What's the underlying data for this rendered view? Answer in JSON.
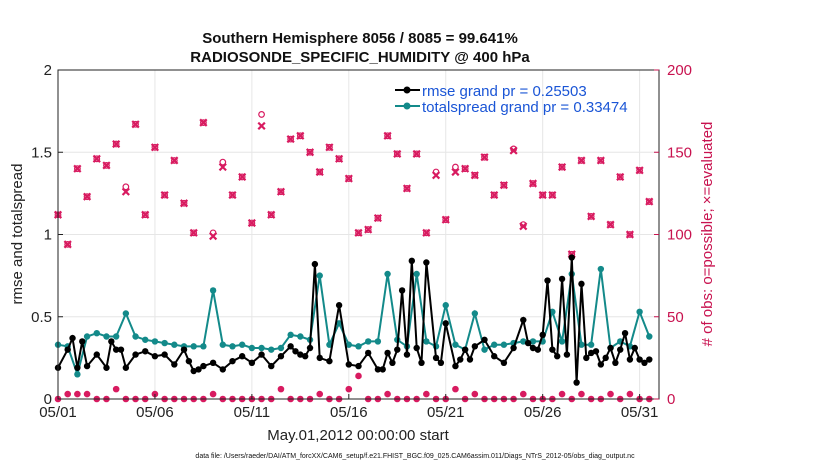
{
  "chart_data": {
    "type": "line",
    "title_line1": "Southern Hemisphere 8056 / 8085 = 99.641%",
    "title_line2": "RADIOSONDE_SPECIFIC_HUMIDITY @ 400 hPa",
    "xlabel": "May.01,2012 00:00:00 start",
    "ylabel": "rmse and totalspread",
    "ylabel_right": "# of obs: o=possible; ×=evaluated",
    "footer": "data file: /Users/raeder/DAI/ATM_forcXX/CAM6_setup/f.e21.FHIST_BGC.f09_025.CAM6assim.011/Diags_NTrS_2012-05/obs_diag_output.nc",
    "xlim": [
      1,
      32
    ],
    "ylim": [
      0,
      2
    ],
    "ylim_right": [
      0,
      200
    ],
    "x_tick_values": [
      1,
      6,
      11,
      16,
      21,
      26,
      31
    ],
    "x_tick_labels": [
      "05/01",
      "05/06",
      "05/11",
      "05/16",
      "05/21",
      "05/26",
      "05/31"
    ],
    "y_ticks": [
      "0",
      "0.5",
      "1",
      "1.5",
      "2"
    ],
    "y_ticks_right": [
      "0",
      "50",
      "100",
      "150",
      "200"
    ],
    "grid": true,
    "colors": {
      "rmse": "#000000",
      "spread": "#138a8a",
      "obs": "#d81b60",
      "legend_text": "#1a55d6"
    },
    "series": [
      {
        "name": "rmse grand pr = 0.25503",
        "x": [
          1.0,
          1.5,
          1.75,
          2.0,
          2.25,
          2.5,
          3.0,
          3.5,
          3.75,
          4.0,
          4.25,
          4.5,
          5.0,
          5.5,
          6.0,
          6.5,
          7.0,
          7.5,
          7.75,
          8.0,
          8.25,
          8.5,
          9.0,
          9.5,
          10.0,
          10.5,
          11.0,
          11.5,
          12.0,
          12.5,
          13.0,
          13.25,
          13.5,
          13.75,
          14.0,
          14.25,
          14.5,
          15.0,
          15.5,
          16.0,
          16.5,
          17.0,
          17.5,
          17.75,
          18.0,
          18.25,
          18.5,
          18.75,
          19.0,
          19.25,
          19.5,
          19.75,
          20.0,
          20.5,
          20.75,
          21.0,
          21.5,
          21.75,
          22.0,
          22.25,
          22.5,
          23.0,
          23.5,
          24.0,
          24.5,
          25.0,
          25.25,
          25.5,
          25.75,
          26.0,
          26.25,
          26.5,
          26.75,
          27.0,
          27.25,
          27.5,
          27.75,
          28.0,
          28.25,
          28.5,
          28.75,
          29.0,
          29.25,
          29.5,
          29.75,
          30.0,
          30.25,
          30.5,
          30.75,
          31.0,
          31.25,
          31.5
        ],
        "y": [
          0.19,
          0.3,
          0.37,
          0.19,
          0.35,
          0.2,
          0.27,
          0.19,
          0.35,
          0.3,
          0.3,
          0.19,
          0.27,
          0.29,
          0.26,
          0.27,
          0.21,
          0.3,
          0.23,
          0.17,
          0.18,
          0.2,
          0.22,
          0.18,
          0.23,
          0.26,
          0.22,
          0.27,
          0.2,
          0.26,
          0.32,
          0.29,
          0.27,
          0.26,
          0.31,
          0.82,
          0.25,
          0.23,
          0.57,
          0.21,
          0.2,
          0.28,
          0.18,
          0.18,
          0.28,
          0.22,
          0.3,
          0.66,
          0.27,
          0.84,
          0.31,
          0.22,
          0.83,
          0.25,
          0.22,
          0.46,
          0.2,
          0.24,
          0.3,
          0.24,
          0.32,
          0.36,
          0.26,
          0.22,
          0.31,
          0.48,
          0.34,
          0.31,
          0.3,
          0.39,
          0.72,
          0.3,
          0.26,
          0.73,
          0.27,
          0.86,
          0.1,
          0.7,
          0.25,
          0.28,
          0.29,
          0.21,
          0.25,
          0.31,
          0.22,
          0.3,
          0.4,
          0.24,
          0.31,
          0.24,
          0.22,
          0.24
        ]
      },
      {
        "name": "totalspread grand pr = 0.33474",
        "x": [
          1.0,
          1.5,
          2.0,
          2.5,
          3.0,
          3.5,
          4.0,
          4.5,
          5.0,
          5.5,
          6.0,
          6.5,
          7.0,
          7.5,
          8.0,
          8.5,
          9.0,
          9.5,
          10.0,
          10.5,
          11.0,
          11.5,
          12.0,
          12.5,
          13.0,
          13.5,
          14.0,
          14.5,
          15.0,
          15.5,
          16.0,
          16.5,
          17.0,
          17.5,
          18.0,
          18.5,
          19.0,
          19.5,
          20.0,
          20.5,
          21.0,
          21.5,
          22.0,
          22.5,
          23.0,
          23.5,
          24.0,
          24.5,
          25.0,
          25.5,
          26.0,
          26.5,
          27.0,
          27.5,
          28.0,
          28.5,
          29.0,
          29.5,
          30.0,
          30.5,
          31.0,
          31.5
        ],
        "y": [
          0.33,
          0.32,
          0.15,
          0.38,
          0.4,
          0.38,
          0.38,
          0.52,
          0.38,
          0.36,
          0.35,
          0.34,
          0.33,
          0.32,
          0.32,
          0.32,
          0.66,
          0.33,
          0.32,
          0.33,
          0.31,
          0.31,
          0.3,
          0.31,
          0.39,
          0.38,
          0.36,
          0.75,
          0.33,
          0.46,
          0.33,
          0.32,
          0.35,
          0.35,
          0.76,
          0.36,
          0.32,
          0.76,
          0.35,
          0.32,
          0.57,
          0.33,
          0.3,
          0.52,
          0.3,
          0.33,
          0.33,
          0.34,
          0.35,
          0.35,
          0.35,
          0.53,
          0.35,
          0.76,
          0.33,
          0.33,
          0.79,
          0.31,
          0.35,
          0.32,
          0.53,
          0.38
        ]
      },
      {
        "name": "obs possible",
        "axis": "right",
        "x": [
          1.0,
          1.5,
          2.0,
          2.5,
          3.0,
          3.5,
          4.0,
          4.5,
          5.0,
          5.5,
          6.0,
          6.5,
          7.0,
          7.5,
          8.0,
          8.5,
          9.0,
          9.5,
          10.0,
          10.5,
          11.0,
          11.5,
          12.0,
          12.5,
          13.0,
          13.5,
          14.0,
          14.5,
          15.0,
          15.5,
          16.0,
          16.5,
          17.0,
          17.5,
          18.0,
          18.5,
          19.0,
          19.5,
          20.0,
          20.5,
          21.0,
          21.5,
          22.0,
          22.5,
          23.0,
          23.5,
          24.0,
          24.5,
          25.0,
          25.5,
          26.0,
          26.5,
          27.0,
          27.5,
          28.0,
          28.5,
          29.0,
          29.5,
          30.0,
          30.5,
          31.0,
          31.5
        ],
        "y": [
          112,
          94,
          140,
          123,
          146,
          142,
          155,
          129,
          167,
          112,
          153,
          124,
          145,
          119,
          101,
          168,
          101,
          144,
          124,
          135,
          107,
          173,
          112,
          126,
          158,
          160,
          150,
          138,
          153,
          146,
          134,
          101,
          103,
          110,
          160,
          149,
          128,
          149,
          101,
          138,
          109,
          141,
          140,
          136,
          147,
          124,
          130,
          152,
          106,
          131,
          124,
          124,
          141,
          88,
          145,
          111,
          145,
          106,
          135,
          100,
          139,
          120
        ]
      },
      {
        "name": "obs evaluated",
        "axis": "right",
        "x": [
          1.0,
          1.5,
          2.0,
          2.5,
          3.0,
          3.5,
          4.0,
          4.5,
          5.0,
          5.5,
          6.0,
          6.5,
          7.0,
          7.5,
          8.0,
          8.5,
          9.0,
          9.5,
          10.0,
          10.5,
          11.0,
          11.5,
          12.0,
          12.5,
          13.0,
          13.5,
          14.0,
          14.5,
          15.0,
          15.5,
          16.0,
          16.5,
          17.0,
          17.5,
          18.0,
          18.5,
          19.0,
          19.5,
          20.0,
          20.5,
          21.0,
          21.5,
          22.0,
          22.5,
          23.0,
          23.5,
          24.0,
          24.5,
          25.0,
          25.5,
          26.0,
          26.5,
          27.0,
          27.5,
          28.0,
          28.5,
          29.0,
          29.5,
          30.0,
          30.5,
          31.0,
          31.5
        ],
        "y": [
          112,
          94,
          140,
          123,
          146,
          142,
          155,
          126,
          167,
          112,
          153,
          124,
          145,
          119,
          101,
          168,
          99,
          141,
          124,
          135,
          107,
          166,
          112,
          126,
          158,
          160,
          150,
          138,
          153,
          146,
          134,
          101,
          103,
          110,
          160,
          149,
          128,
          149,
          101,
          136,
          109,
          138,
          140,
          136,
          147,
          124,
          130,
          151,
          105,
          131,
          124,
          124,
          141,
          88,
          145,
          111,
          145,
          106,
          135,
          100,
          139,
          120
        ]
      },
      {
        "name": "obs near zero",
        "axis": "right",
        "x": [
          1.0,
          1.5,
          2.0,
          2.5,
          3.0,
          3.5,
          4.0,
          4.5,
          5.0,
          5.5,
          6.0,
          6.5,
          7.0,
          7.5,
          8.0,
          8.5,
          9.0,
          9.5,
          10.0,
          10.5,
          11.0,
          11.5,
          12.0,
          12.5,
          13.0,
          13.5,
          14.0,
          14.5,
          15.0,
          15.5,
          16.0,
          16.5,
          17.0,
          17.5,
          18.0,
          18.5,
          19.0,
          19.5,
          20.0,
          20.5,
          21.0,
          21.5,
          22.0,
          22.5,
          23.0,
          23.5,
          24.0,
          24.5,
          25.0,
          25.5,
          26.0,
          26.5,
          27.0,
          27.5,
          28.0,
          28.5,
          29.0,
          29.5,
          30.0,
          30.5,
          31.0,
          31.5
        ],
        "y": [
          0,
          3,
          3,
          3,
          0,
          0,
          6,
          0,
          0,
          0,
          3,
          0,
          0,
          0,
          0,
          0,
          3,
          0,
          0,
          0,
          0,
          0,
          0,
          6,
          0,
          0,
          0,
          3,
          0,
          0,
          6,
          14,
          0,
          0,
          3,
          0,
          0,
          0,
          3,
          0,
          0,
          6,
          0,
          3,
          0,
          0,
          0,
          0,
          3,
          0,
          0,
          0,
          3,
          0,
          3,
          0,
          0,
          3,
          0,
          3,
          0,
          0
        ]
      }
    ]
  }
}
